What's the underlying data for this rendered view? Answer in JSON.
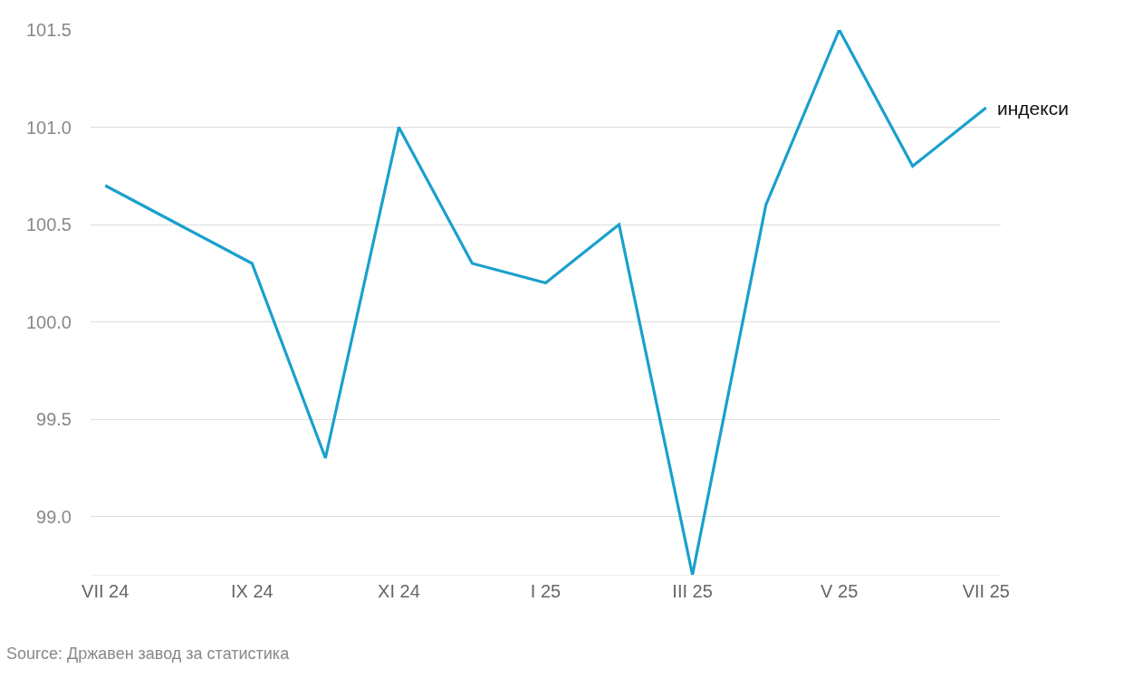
{
  "chart_data": {
    "type": "line",
    "categories": [
      "VII 24",
      null,
      "IX 24",
      null,
      "XI 24",
      null,
      "I 25",
      null,
      "III 25",
      null,
      "V 25",
      null,
      "VII 25"
    ],
    "series": [
      {
        "name": "индекси",
        "color": "#1aa0cc",
        "values": [
          100.7,
          100.5,
          100.3,
          99.3,
          101.0,
          100.3,
          100.2,
          100.5,
          98.7,
          100.6,
          101.5,
          100.8,
          101.1
        ]
      }
    ],
    "ylim": [
      98.7,
      101.5
    ],
    "yticks": [
      {
        "value": 99,
        "label": "99.0"
      },
      {
        "value": 99.5,
        "label": "99.5"
      },
      {
        "value": 100,
        "label": "100.0"
      },
      {
        "value": 100.5,
        "label": "100.5"
      },
      {
        "value": 101,
        "label": "101.0"
      },
      {
        "value": 101.5,
        "label": "101.5"
      }
    ],
    "grid": "y",
    "legend": false,
    "marker": "none",
    "line_style": "solid",
    "annotations": [
      "Source: Државен завод за статистика"
    ]
  }
}
